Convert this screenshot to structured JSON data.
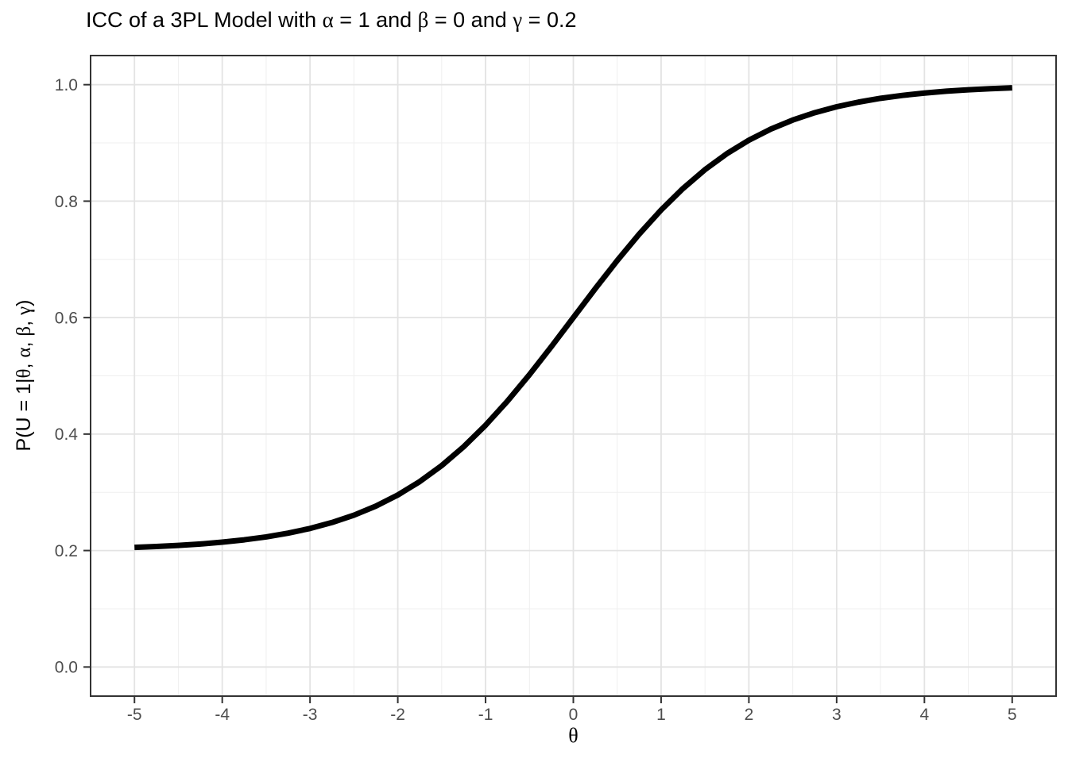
{
  "chart_data": {
    "type": "line",
    "title": "ICC of a 3PL Model with α = 1 and β = 0 and γ = 0.2",
    "xlabel": "θ",
    "ylabel": "P(U = 1|θ, α, β, γ)",
    "xlim": [
      -5,
      5
    ],
    "ylim": [
      0,
      1
    ],
    "x_major_ticks": [
      -5,
      -4,
      -3,
      -2,
      -1,
      0,
      1,
      2,
      3,
      4,
      5
    ],
    "x_tick_labels": [
      "-5",
      "-4",
      "-3",
      "-2",
      "-1",
      "0",
      "1",
      "2",
      "3",
      "4",
      "5"
    ],
    "x_minor_ticks": [
      -4.5,
      -3.5,
      -2.5,
      -1.5,
      -0.5,
      0.5,
      1.5,
      2.5,
      3.5,
      4.5
    ],
    "y_major_ticks": [
      0,
      0.2,
      0.4,
      0.6,
      0.8,
      1.0
    ],
    "y_tick_labels": [
      "0.0",
      "0.2",
      "0.4",
      "0.6",
      "0.8",
      "1.0"
    ],
    "y_minor_ticks": [
      0.1,
      0.3,
      0.5,
      0.7,
      0.9
    ],
    "grid": true,
    "legend_position": "none",
    "model": {
      "name": "3PL",
      "alpha": 1,
      "beta": 0,
      "gamma": 0.2
    },
    "series": [
      {
        "name": "ICC",
        "color": "#000000",
        "x": [
          -5,
          -4.75,
          -4.5,
          -4.25,
          -4,
          -3.75,
          -3.5,
          -3.25,
          -3,
          -2.75,
          -2.5,
          -2.25,
          -2,
          -1.75,
          -1.5,
          -1.25,
          -1,
          -0.75,
          -0.5,
          -0.25,
          0,
          0.25,
          0.5,
          0.75,
          1,
          1.25,
          1.5,
          1.75,
          2,
          2.25,
          2.5,
          2.75,
          3,
          3.25,
          3.5,
          3.75,
          4,
          4.25,
          4.5,
          4.75,
          5
        ],
        "y": [
          0.2054,
          0.2069,
          0.2088,
          0.2112,
          0.2144,
          0.2184,
          0.2234,
          0.2299,
          0.2379,
          0.2481,
          0.2607,
          0.2763,
          0.2954,
          0.3184,
          0.3459,
          0.3782,
          0.4152,
          0.4567,
          0.502,
          0.5503,
          0.6,
          0.6497,
          0.698,
          0.7433,
          0.7848,
          0.8218,
          0.8541,
          0.8816,
          0.9046,
          0.9237,
          0.9393,
          0.9519,
          0.9621,
          0.9701,
          0.9766,
          0.9816,
          0.9856,
          0.9888,
          0.9912,
          0.9931,
          0.9946
        ]
      }
    ]
  },
  "colors": {
    "background": "#ffffff",
    "panel_background": "#ffffff",
    "panel_border": "#333333",
    "grid_major": "#e3e3e3",
    "grid_minor": "#efefef",
    "axis_tick": "#333333",
    "tick_label": "#4d4d4d",
    "curve": "#000000",
    "title": "#000000"
  }
}
